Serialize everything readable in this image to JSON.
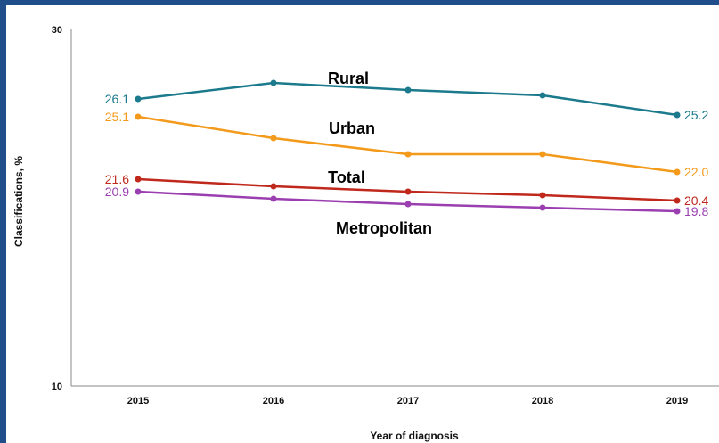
{
  "chart_data": {
    "type": "line",
    "title": "",
    "xlabel": "Year of diagnosis",
    "ylabel": "Classifications, %",
    "ylim": [
      10,
      30
    ],
    "y_ticks": [
      "30",
      "10"
    ],
    "x": [
      "2015",
      "2016",
      "2017",
      "2018",
      "2019"
    ],
    "grid": false,
    "legend": "inline labels",
    "series": [
      {
        "name": "Rural",
        "color": "#1b7a8c",
        "values": [
          26.1,
          27.0,
          26.6,
          26.3,
          25.2
        ],
        "first_label": "26.1",
        "last_label": "25.2"
      },
      {
        "name": "Urban",
        "color": "#f39a1b",
        "values": [
          25.1,
          23.9,
          23.0,
          23.0,
          22.0
        ],
        "first_label": "25.1",
        "last_label": "22.0"
      },
      {
        "name": "Total",
        "color": "#c0281c",
        "values": [
          21.6,
          21.2,
          20.9,
          20.7,
          20.4
        ],
        "first_label": "21.6",
        "last_label": "20.4"
      },
      {
        "name": "Metropolitan",
        "color": "#9b3fb0",
        "values": [
          20.9,
          20.5,
          20.2,
          20.0,
          19.8
        ],
        "first_label": "20.9",
        "last_label": "19.8"
      }
    ]
  }
}
